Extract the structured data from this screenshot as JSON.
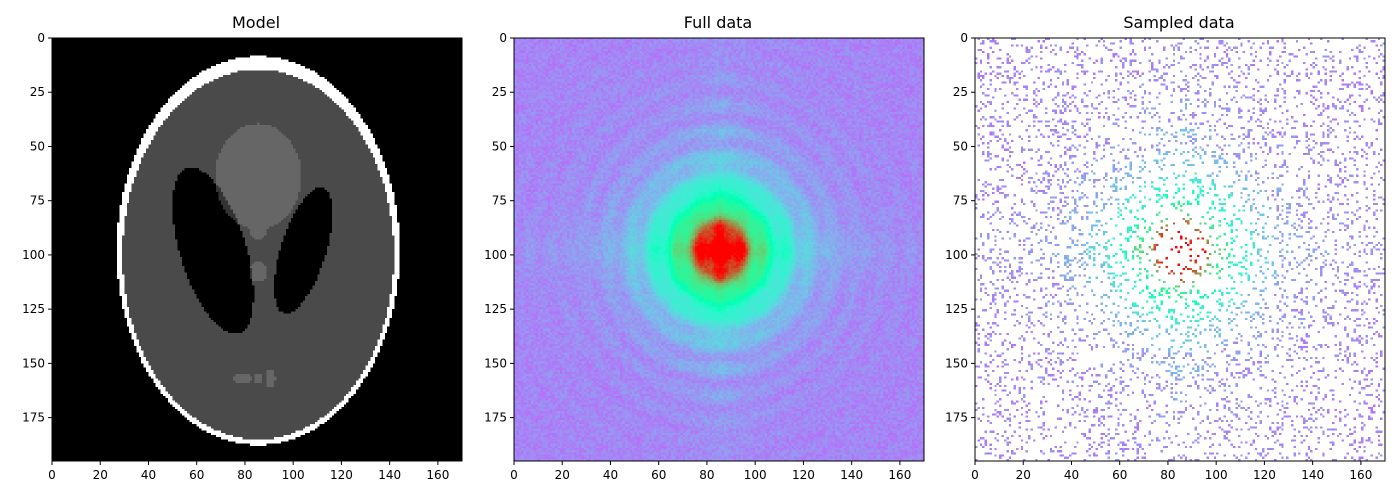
{
  "chart_data": [
    {
      "type": "heatmap",
      "title": "Model",
      "xlabel": "",
      "ylabel": "",
      "colormap": "gray",
      "image": "shepp-logan phantom",
      "shape": [
        195,
        170
      ],
      "xlim": [
        0,
        170
      ],
      "ylim": [
        195,
        0
      ],
      "xticks": [
        0,
        20,
        40,
        60,
        80,
        100,
        120,
        140,
        160
      ],
      "xtick_labels": [
        "0",
        "20",
        "40",
        "60",
        "80",
        "100",
        "120",
        "140",
        "160"
      ],
      "yticks": [
        0,
        25,
        50,
        75,
        100,
        125,
        150,
        175
      ],
      "ytick_labels": [
        "0",
        "25",
        "50",
        "75",
        "100",
        "125",
        "150",
        "175"
      ]
    },
    {
      "type": "heatmap",
      "title": "Full data",
      "xlabel": "",
      "ylabel": "",
      "colormap": "rainbow",
      "image": "fourier magnitude spectrum",
      "shape": [
        195,
        170
      ],
      "xlim": [
        0,
        170
      ],
      "ylim": [
        195,
        0
      ],
      "xticks": [
        0,
        20,
        40,
        60,
        80,
        100,
        120,
        140,
        160
      ],
      "xtick_labels": [
        "0",
        "20",
        "40",
        "60",
        "80",
        "100",
        "120",
        "140",
        "160"
      ],
      "yticks": [
        0,
        25,
        50,
        75,
        100,
        125,
        150,
        175
      ],
      "ytick_labels": [
        "0",
        "25",
        "50",
        "75",
        "100",
        "125",
        "150",
        "175"
      ]
    },
    {
      "type": "heatmap",
      "title": "Sampled data",
      "xlabel": "",
      "ylabel": "",
      "colormap": "rainbow",
      "image": "randomly subsampled spectrum",
      "shape": [
        195,
        170
      ],
      "xlim": [
        0,
        170
      ],
      "ylim": [
        195,
        0
      ],
      "xticks": [
        0,
        20,
        40,
        60,
        80,
        100,
        120,
        140,
        160
      ],
      "xtick_labels": [
        "0",
        "20",
        "40",
        "60",
        "80",
        "100",
        "120",
        "140",
        "160"
      ],
      "yticks": [
        0,
        25,
        50,
        75,
        100,
        125,
        150,
        175
      ],
      "ytick_labels": [
        "0",
        "25",
        "50",
        "75",
        "100",
        "125",
        "150",
        "175"
      ]
    }
  ]
}
